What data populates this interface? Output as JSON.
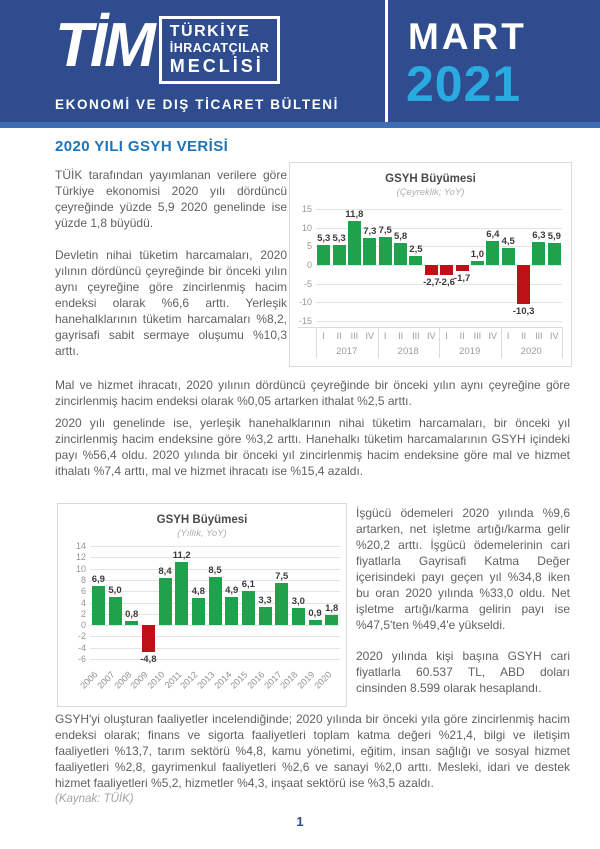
{
  "header": {
    "logo_acronym": "TİM",
    "logo_lines": [
      "TÜRKİYE",
      "İHRACATÇILAR",
      "MECLİSİ"
    ],
    "tagline": "EKONOMİ VE DIŞ TİCARET BÜLTENİ",
    "month": "MART",
    "year": "2021",
    "colors": {
      "banner": "#2e4c8e",
      "strip": "#3f6db3",
      "year_accent": "#29abe2"
    }
  },
  "article": {
    "section_title": "2020 YILI GSYH VERİSİ",
    "paragraphs": {
      "p1": "TÜİK tarafından yayımlanan verilere göre Türkiye ekonomisi 2020 yılı dördüncü çeyreğinde yüzde 5,9 2020 genelinde ise yüzde 1,8 büyüdü.",
      "p2": "Devletin nihai tüketim harcamaları, 2020 yılının dördüncü çeyreğinde bir önceki yılın aynı çeyreğine göre zincirlenmiş hacim endeksi olarak %6,6 arttı. Yerleşik hanehalklarının tüketim harcamaları %8,2, gayrisafi sabit sermaye oluşumu %10,3 arttı.",
      "p3": "Mal ve hizmet ihracatı, 2020 yılının dördüncü çeyreğinde bir önceki yılın aynı çeyreğine göre zincirlenmiş hacim endeksi olarak %0,05 artarken ithalat %2,5 arttı.",
      "p4": "2020 yılı genelinde ise, yerleşik hanehalklarının nihai tüketim harcamaları, bir önceki yıl zincirlenmiş hacim endeksine göre %3,2 arttı. Hanehalkı tüketim harcamalarının GSYH içindeki payı %56,4 oldu. 2020 yılında bir önceki yıl zincirlenmiş hacim endeksine göre mal ve hizmet ithalatı %7,4 arttı, mal ve hizmet ihracatı ise %15,4 azaldı.",
      "p5": "İşgücü ödemeleri 2020 yılında %9,6 artarken, net işletme artığı/karma gelir %20,2 arttı. İşgücü ödemelerinin cari fiyatlarla Gayrisafi Katma Değer içerisindeki payı geçen yıl %34,8 iken bu oran 2020 yılında %33,0 oldu. Net işletme artığı/karma gelirin payı ise %47,5'ten %49,4'e yükseldi.",
      "p6": "2020 yılında kişi başına GSYH cari fiyatlarla 60.537 TL, ABD doları cinsinden 8.599 olarak hesaplandı.",
      "p7": "GSYH'yi oluşturan faaliyetler incelendiğinde; 2020 yılında bir önceki yıla göre zincirlenmiş hacim endeksi olarak; finans ve sigorta faaliyetleri toplam katma değeri %21,4, bilgi ve iletişim faaliyetleri %13,7, tarım sektörü %4,8, kamu yönetimi, eğitim, insan sağlığı ve sosyal hizmet faaliyetleri %2,8, gayrimenkul faaliyetleri %2,6 ve sanayi %2,0 arttı. Mesleki, idari ve destek hizmet faaliyetleri %5,2, hizmetler %4,3, inşaat sektörü ise %3,5 azaldı."
    },
    "source_note": "(Kaynak: TÜİK)"
  },
  "chart_data": [
    {
      "type": "bar",
      "title": "GSYH Büyümesi",
      "subtitle": "(Çeyreklik; YoY)",
      "ylim": [
        -15,
        15
      ],
      "yticks": [
        15,
        10,
        5,
        0,
        -5,
        -10,
        -15
      ],
      "grid": true,
      "legend": false,
      "colors": {
        "positive": "#1fa24c",
        "negative": "#bb1117"
      },
      "groups": [
        {
          "label": "2017",
          "ticks": [
            "I",
            "II",
            "III",
            "IV"
          ]
        },
        {
          "label": "2018",
          "ticks": [
            "I",
            "II",
            "III",
            "IV"
          ]
        },
        {
          "label": "2019",
          "ticks": [
            "I",
            "II",
            "III",
            "IV"
          ]
        },
        {
          "label": "2020",
          "ticks": [
            "I",
            "II",
            "III",
            "IV"
          ]
        }
      ],
      "values": [
        5.3,
        5.3,
        11.8,
        7.3,
        7.5,
        5.8,
        2.5,
        -2.7,
        -2.6,
        -1.7,
        1.0,
        6.4,
        4.5,
        -10.3,
        6.3,
        5.9
      ],
      "labels": [
        "5,3",
        "5,3",
        "11,8",
        "7,3",
        "7,5",
        "5,8",
        "2,5",
        "-2,7",
        "-2,6",
        "-1,7",
        "1,0",
        "6,4",
        "4,5",
        "-10,3",
        "6,3",
        "5,9"
      ]
    },
    {
      "type": "bar",
      "title": "GSYH Büyümesi",
      "subtitle": "(Yıllık, YoY)",
      "ylim": [
        -6,
        14
      ],
      "yticks": [
        14,
        12,
        10,
        8,
        6,
        4,
        2,
        0,
        -2,
        -4,
        -6
      ],
      "grid": true,
      "legend": false,
      "colors": {
        "positive": "#1fa24c",
        "negative": "#bb1117"
      },
      "categories": [
        "2006",
        "2007",
        "2008",
        "2009",
        "2010",
        "2011",
        "2012",
        "2013",
        "2014",
        "2015",
        "2016",
        "2017",
        "2018",
        "2019",
        "2020"
      ],
      "values": [
        6.9,
        5.0,
        0.8,
        -4.8,
        8.4,
        11.2,
        4.8,
        8.5,
        4.9,
        6.1,
        3.3,
        7.5,
        3.0,
        0.9,
        1.8
      ],
      "labels": [
        "6,9",
        "5,0",
        "0,8",
        "-4,8",
        "8,4",
        "11,2",
        "4,8",
        "8,5",
        "4,9",
        "6,1",
        "3,3",
        "7,5",
        "3,0",
        "0,9",
        "1,8"
      ]
    }
  ],
  "footer": {
    "page_number": "1"
  }
}
